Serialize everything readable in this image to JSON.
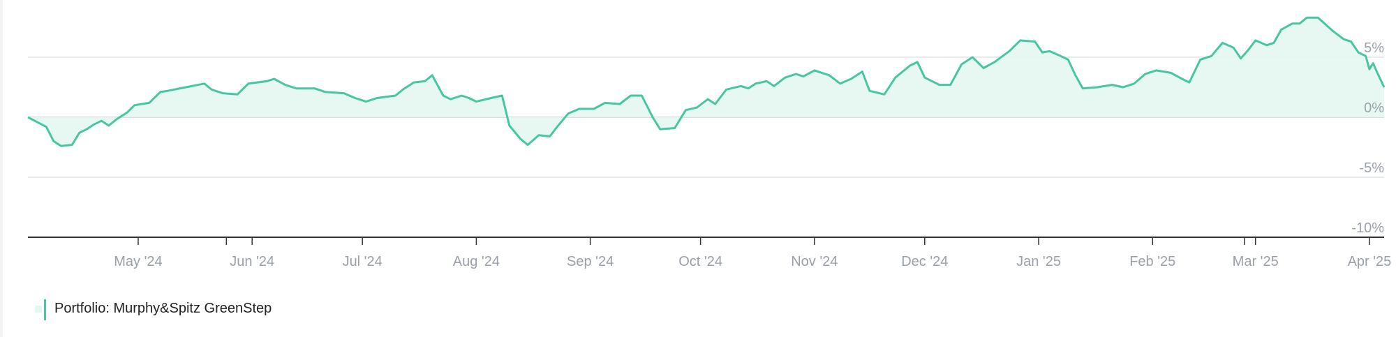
{
  "colors": {
    "line": "#47c6a4",
    "area": "#e4f6f0",
    "grid": "#e1e3e6",
    "axis": "#333333",
    "label": "#9aa1ab"
  },
  "legend": {
    "label": "Portfolio: Murphy&Spitz GreenStep"
  },
  "chart_data": {
    "type": "area",
    "title": "",
    "xlabel": "",
    "ylabel": "",
    "grid": true,
    "legend_position": "bottom-left",
    "ylim": [
      -10,
      9
    ],
    "y_ticks": [
      {
        "value": 5,
        "label": "5%"
      },
      {
        "value": 0,
        "label": "0%"
      },
      {
        "value": -5,
        "label": "-5%"
      },
      {
        "value": -10,
        "label": "-10%"
      }
    ],
    "x_range": [
      "2024-04-01",
      "2025-04-05"
    ],
    "x_ticks": [
      {
        "date": "2024-05-01",
        "label": "May '24"
      },
      {
        "date": "2024-05-25",
        "label": ""
      },
      {
        "date": "2024-06-01",
        "label": "Jun '24"
      },
      {
        "date": "2024-07-01",
        "label": "Jul '24"
      },
      {
        "date": "2024-08-01",
        "label": "Aug '24"
      },
      {
        "date": "2024-09-01",
        "label": "Sep '24"
      },
      {
        "date": "2024-10-01",
        "label": "Oct '24"
      },
      {
        "date": "2024-11-01",
        "label": "Nov '24"
      },
      {
        "date": "2024-12-01",
        "label": "Dec '24"
      },
      {
        "date": "2025-01-01",
        "label": "Jan '25"
      },
      {
        "date": "2025-02-01",
        "label": "Feb '25"
      },
      {
        "date": "2025-02-26",
        "label": ""
      },
      {
        "date": "2025-03-01",
        "label": "Mar '25"
      },
      {
        "date": "2025-04-01",
        "label": "Apr '25"
      }
    ],
    "series": [
      {
        "name": "Portfolio: Murphy&Spitz GreenStep",
        "points": [
          [
            "2024-04-01",
            0.0
          ],
          [
            "2024-04-06",
            -0.8
          ],
          [
            "2024-04-08",
            -2.0
          ],
          [
            "2024-04-10",
            -2.4
          ],
          [
            "2024-04-13",
            -2.3
          ],
          [
            "2024-04-15",
            -1.3
          ],
          [
            "2024-04-17",
            -1.0
          ],
          [
            "2024-04-19",
            -0.6
          ],
          [
            "2024-04-21",
            -0.3
          ],
          [
            "2024-04-23",
            -0.7
          ],
          [
            "2024-04-25",
            -0.2
          ],
          [
            "2024-04-28",
            0.4
          ],
          [
            "2024-04-30",
            1.0
          ],
          [
            "2024-05-04",
            1.2
          ],
          [
            "2024-05-07",
            2.1
          ],
          [
            "2024-05-09",
            2.2
          ],
          [
            "2024-05-14",
            2.5
          ],
          [
            "2024-05-19",
            2.8
          ],
          [
            "2024-05-21",
            2.3
          ],
          [
            "2024-05-24",
            2.0
          ],
          [
            "2024-05-28",
            1.9
          ],
          [
            "2024-05-31",
            2.8
          ],
          [
            "2024-06-05",
            3.0
          ],
          [
            "2024-06-07",
            3.2
          ],
          [
            "2024-06-10",
            2.7
          ],
          [
            "2024-06-13",
            2.4
          ],
          [
            "2024-06-18",
            2.4
          ],
          [
            "2024-06-21",
            2.1
          ],
          [
            "2024-06-26",
            2.0
          ],
          [
            "2024-06-29",
            1.6
          ],
          [
            "2024-07-02",
            1.3
          ],
          [
            "2024-07-05",
            1.6
          ],
          [
            "2024-07-10",
            1.8
          ],
          [
            "2024-07-12",
            2.3
          ],
          [
            "2024-07-15",
            2.9
          ],
          [
            "2024-07-18",
            3.0
          ],
          [
            "2024-07-20",
            3.5
          ],
          [
            "2024-07-23",
            1.8
          ],
          [
            "2024-07-25",
            1.5
          ],
          [
            "2024-07-28",
            1.8
          ],
          [
            "2024-07-30",
            1.6
          ],
          [
            "2024-08-01",
            1.3
          ],
          [
            "2024-08-05",
            1.6
          ],
          [
            "2024-08-08",
            1.8
          ],
          [
            "2024-08-10",
            -0.7
          ],
          [
            "2024-08-13",
            -1.8
          ],
          [
            "2024-08-15",
            -2.3
          ],
          [
            "2024-08-18",
            -1.5
          ],
          [
            "2024-08-21",
            -1.6
          ],
          [
            "2024-08-23",
            -0.8
          ],
          [
            "2024-08-26",
            0.3
          ],
          [
            "2024-08-29",
            0.7
          ],
          [
            "2024-09-02",
            0.7
          ],
          [
            "2024-09-05",
            1.2
          ],
          [
            "2024-09-09",
            1.1
          ],
          [
            "2024-09-12",
            1.8
          ],
          [
            "2024-09-15",
            1.8
          ],
          [
            "2024-09-18",
            0.0
          ],
          [
            "2024-09-20",
            -1.0
          ],
          [
            "2024-09-24",
            -0.9
          ],
          [
            "2024-09-27",
            0.6
          ],
          [
            "2024-09-30",
            0.8
          ],
          [
            "2024-10-03",
            1.5
          ],
          [
            "2024-10-05",
            1.1
          ],
          [
            "2024-10-08",
            2.3
          ],
          [
            "2024-10-12",
            2.6
          ],
          [
            "2024-10-14",
            2.4
          ],
          [
            "2024-10-16",
            2.8
          ],
          [
            "2024-10-19",
            3.0
          ],
          [
            "2024-10-21",
            2.6
          ],
          [
            "2024-10-24",
            3.3
          ],
          [
            "2024-10-27",
            3.6
          ],
          [
            "2024-10-29",
            3.4
          ],
          [
            "2024-11-01",
            3.9
          ],
          [
            "2024-11-05",
            3.5
          ],
          [
            "2024-11-08",
            2.8
          ],
          [
            "2024-11-11",
            3.2
          ],
          [
            "2024-11-14",
            3.8
          ],
          [
            "2024-11-16",
            2.2
          ],
          [
            "2024-11-20",
            1.9
          ],
          [
            "2024-11-23",
            3.3
          ],
          [
            "2024-11-27",
            4.3
          ],
          [
            "2024-11-29",
            4.6
          ],
          [
            "2024-12-01",
            3.3
          ],
          [
            "2024-12-05",
            2.7
          ],
          [
            "2024-12-08",
            2.7
          ],
          [
            "2024-12-11",
            4.4
          ],
          [
            "2024-12-14",
            5.0
          ],
          [
            "2024-12-17",
            4.1
          ],
          [
            "2024-12-20",
            4.6
          ],
          [
            "2024-12-24",
            5.5
          ],
          [
            "2024-12-27",
            6.4
          ],
          [
            "2024-12-31",
            6.3
          ],
          [
            "2025-01-02",
            5.4
          ],
          [
            "2025-01-04",
            5.5
          ],
          [
            "2025-01-07",
            5.1
          ],
          [
            "2025-01-09",
            4.8
          ],
          [
            "2025-01-11",
            3.5
          ],
          [
            "2025-01-13",
            2.4
          ],
          [
            "2025-01-17",
            2.5
          ],
          [
            "2025-01-21",
            2.7
          ],
          [
            "2025-01-24",
            2.5
          ],
          [
            "2025-01-27",
            2.8
          ],
          [
            "2025-01-30",
            3.6
          ],
          [
            "2025-02-02",
            3.9
          ],
          [
            "2025-02-06",
            3.7
          ],
          [
            "2025-02-09",
            3.2
          ],
          [
            "2025-02-11",
            2.9
          ],
          [
            "2025-02-14",
            4.8
          ],
          [
            "2025-02-17",
            5.1
          ],
          [
            "2025-02-20",
            6.2
          ],
          [
            "2025-02-23",
            5.8
          ],
          [
            "2025-02-25",
            4.9
          ],
          [
            "2025-02-27",
            5.6
          ],
          [
            "2025-03-01",
            6.4
          ],
          [
            "2025-03-04",
            6.0
          ],
          [
            "2025-03-06",
            6.2
          ],
          [
            "2025-03-08",
            7.3
          ],
          [
            "2025-03-11",
            7.8
          ],
          [
            "2025-03-13",
            7.8
          ],
          [
            "2025-03-15",
            8.3
          ],
          [
            "2025-03-18",
            8.3
          ],
          [
            "2025-03-22",
            7.2
          ],
          [
            "2025-03-25",
            6.5
          ],
          [
            "2025-03-27",
            6.3
          ],
          [
            "2025-03-29",
            5.4
          ],
          [
            "2025-03-31",
            5.1
          ],
          [
            "2025-04-01",
            4.0
          ],
          [
            "2025-04-02",
            4.5
          ],
          [
            "2025-04-03",
            3.8
          ],
          [
            "2025-04-05",
            2.5
          ]
        ]
      }
    ]
  }
}
